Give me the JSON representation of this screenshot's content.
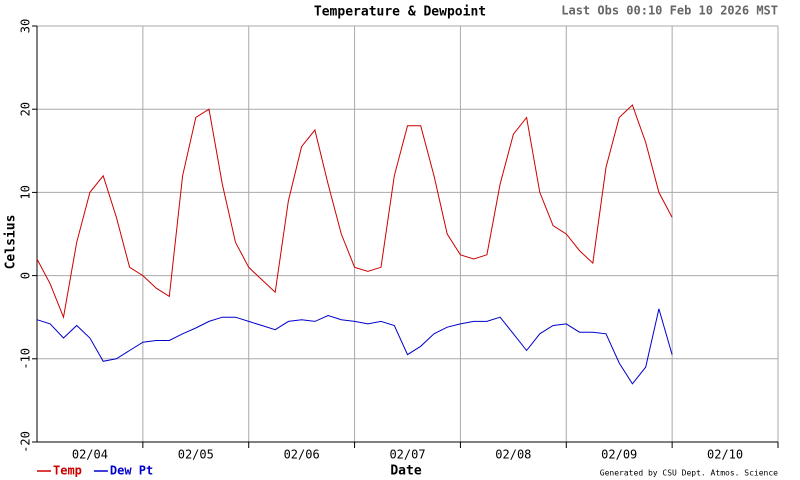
{
  "chart_data": {
    "type": "line",
    "title": "Temperature & Dewpoint",
    "subtitle": "Last Obs 00:10 Feb 10 2026 MST",
    "ylabel": "Celsius",
    "xlabel": "Date",
    "footer": "Generated by CSU Dept. Atmos. Science",
    "x": [
      0,
      0.125,
      0.25,
      0.375,
      0.5,
      0.625,
      0.75,
      0.875,
      1,
      1.125,
      1.25,
      1.375,
      1.5,
      1.625,
      1.75,
      1.875,
      2,
      2.125,
      2.25,
      2.375,
      2.5,
      2.625,
      2.75,
      2.875,
      3,
      3.125,
      3.25,
      3.375,
      3.5,
      3.625,
      3.75,
      3.875,
      4,
      4.125,
      4.25,
      4.375,
      4.5,
      4.625,
      4.75,
      4.875,
      5,
      5.125,
      5.25,
      5.375,
      5.5,
      5.625,
      5.75,
      5.875,
      6
    ],
    "series": [
      {
        "name": "Temp",
        "color": "#cc0000",
        "values": [
          2,
          -1,
          -5,
          4,
          10,
          12,
          7,
          1,
          0,
          -1.5,
          -2.5,
          12,
          19,
          20,
          11,
          4,
          1,
          -0.5,
          -2,
          9,
          15.5,
          17.5,
          11,
          5,
          1,
          0.5,
          1,
          12,
          18,
          18,
          12,
          5,
          2.5,
          2,
          2.5,
          11,
          17,
          19,
          10,
          6,
          5,
          3,
          1.5,
          13,
          19,
          20.5,
          16,
          10,
          7
        ]
      },
      {
        "name": "Dew Pt",
        "color": "#0000cc",
        "values": [
          -5.3,
          -5.8,
          -7.5,
          -6,
          -7.5,
          -10.3,
          -10,
          -9,
          -8,
          -7.8,
          -7.8,
          -7,
          -6.3,
          -5.5,
          -5,
          -5,
          -5.5,
          -6,
          -6.5,
          -5.5,
          -5.3,
          -5.5,
          -4.8,
          -5.3,
          -5.5,
          -5.8,
          -5.5,
          -6,
          -9.5,
          -8.5,
          -7,
          -6.2,
          -5.8,
          -5.5,
          -5.5,
          -5,
          -7,
          -9,
          -7,
          -6,
          -5.8,
          -6.8,
          -6.8,
          -7,
          -10.5,
          -13,
          -11,
          -4,
          -9.5
        ]
      }
    ],
    "xlim": [
      0,
      7
    ],
    "xticks": [
      {
        "value": 0.5,
        "label": "02/04"
      },
      {
        "value": 1.5,
        "label": "02/05"
      },
      {
        "value": 2.5,
        "label": "02/06"
      },
      {
        "value": 3.5,
        "label": "02/07"
      },
      {
        "value": 4.5,
        "label": "02/08"
      },
      {
        "value": 5.5,
        "label": "02/09"
      },
      {
        "value": 6.5,
        "label": "02/10"
      }
    ],
    "xgrid": [
      1,
      2,
      3,
      4,
      5,
      6,
      7
    ],
    "ylim": [
      -20,
      30
    ],
    "yticks": [
      -20,
      -10,
      0,
      10,
      20,
      30
    ],
    "grid": true
  }
}
